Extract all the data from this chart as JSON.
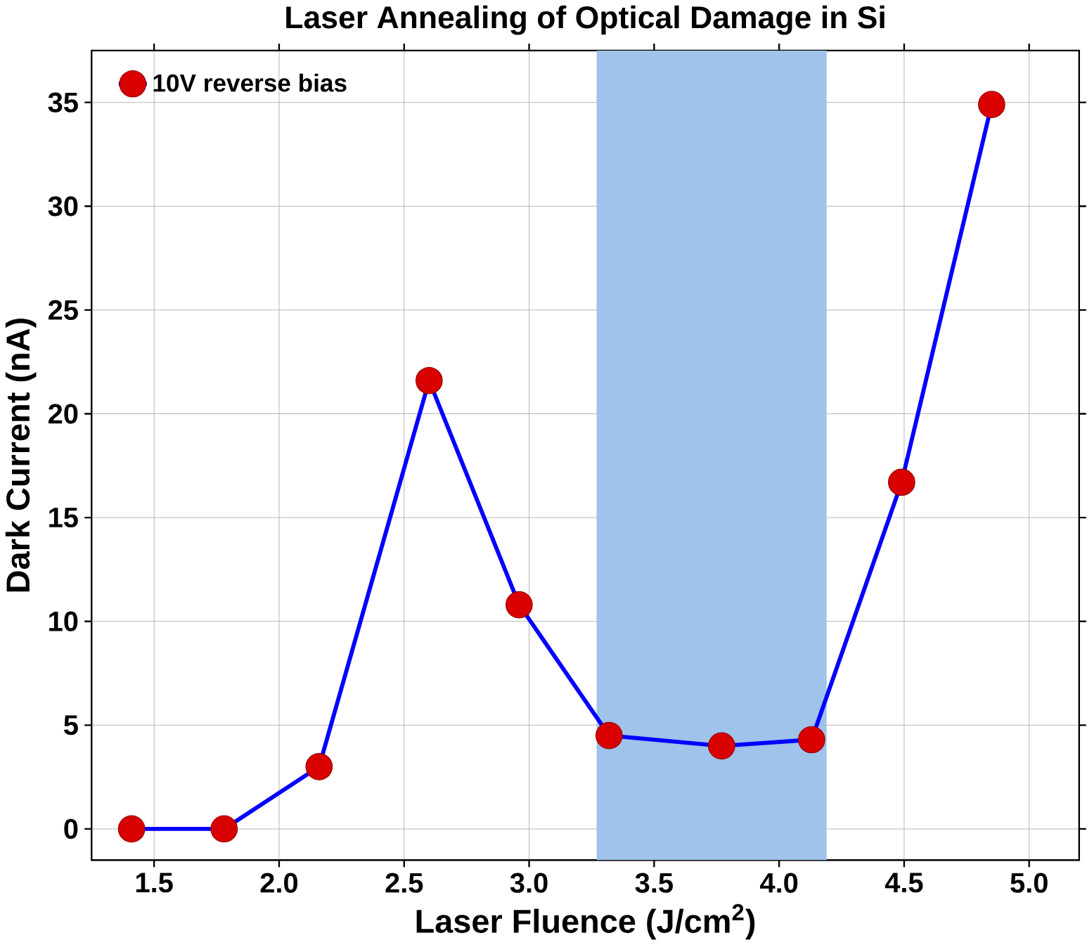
{
  "chart_data": {
    "type": "line",
    "title": "Laser Annealing of Optical Damage in Si",
    "xlabel": "Laser Fluence (J/cm$^{2}$)",
    "ylabel": "Dark Current (nA)",
    "x": [
      1.41,
      1.78,
      2.16,
      2.6,
      2.96,
      3.32,
      3.77,
      4.13,
      4.49,
      4.85
    ],
    "series": [
      {
        "name": "10V reverse bias",
        "color": "#0000ff",
        "values": [
          0,
          0,
          3.0,
          21.6,
          10.8,
          4.5,
          4.0,
          4.3,
          16.7,
          34.9
        ]
      }
    ],
    "xlim": [
      1.25,
      5.2
    ],
    "ylim": [
      -1.5,
      37.5
    ],
    "xticks": [
      {
        "value": 1.5,
        "label": "1.5"
      },
      {
        "value": 2.0,
        "label": "2.0"
      },
      {
        "value": 2.5,
        "label": "2.5"
      },
      {
        "value": 3.0,
        "label": "3.0"
      },
      {
        "value": 3.5,
        "label": "3.5"
      },
      {
        "value": 4.0,
        "label": "4.0"
      },
      {
        "value": 4.5,
        "label": "4.5"
      },
      {
        "value": 5.0,
        "label": "5.0"
      }
    ],
    "yticks": [
      0,
      5,
      10,
      15,
      20,
      25,
      30,
      35
    ],
    "bands": [
      {
        "axis": "x",
        "from": 3.27,
        "to": 4.19,
        "color": "#9fc3ea"
      }
    ],
    "grid": true,
    "legend": "top left",
    "marker": "circle",
    "line_style": "solid"
  }
}
